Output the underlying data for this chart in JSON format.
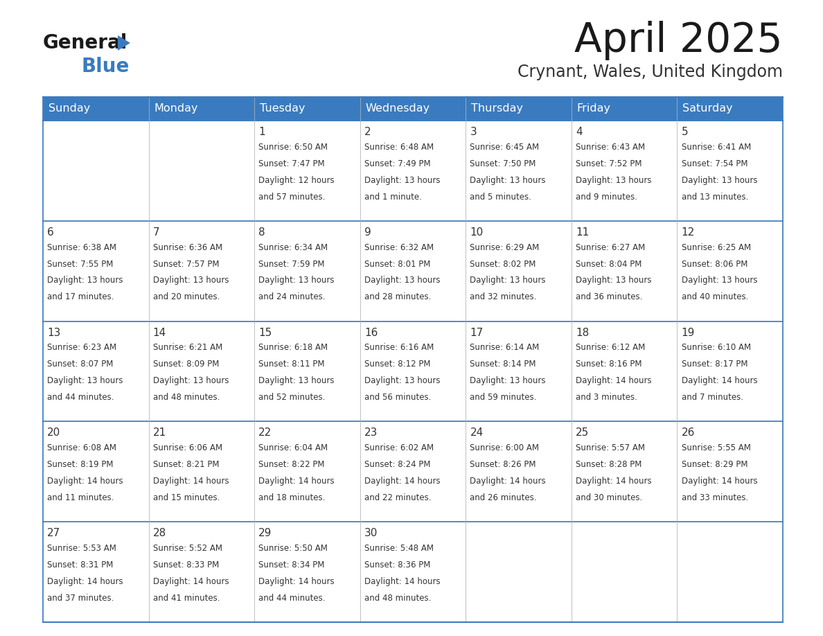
{
  "title": "April 2025",
  "subtitle": "Crynant, Wales, United Kingdom",
  "header_color": "#3a7bbf",
  "header_text_color": "#ffffff",
  "cell_bg_color": "#ffffff",
  "text_color": "#333333",
  "border_color": "#3a7bbf",
  "cell_border_color": "#bbbbbb",
  "days_of_week": [
    "Sunday",
    "Monday",
    "Tuesday",
    "Wednesday",
    "Thursday",
    "Friday",
    "Saturday"
  ],
  "weeks": [
    [
      {
        "day": "",
        "sunrise": "",
        "sunset": "",
        "daylight": ""
      },
      {
        "day": "",
        "sunrise": "",
        "sunset": "",
        "daylight": ""
      },
      {
        "day": "1",
        "sunrise": "Sunrise: 6:50 AM",
        "sunset": "Sunset: 7:47 PM",
        "daylight": "Daylight: 12 hours\nand 57 minutes."
      },
      {
        "day": "2",
        "sunrise": "Sunrise: 6:48 AM",
        "sunset": "Sunset: 7:49 PM",
        "daylight": "Daylight: 13 hours\nand 1 minute."
      },
      {
        "day": "3",
        "sunrise": "Sunrise: 6:45 AM",
        "sunset": "Sunset: 7:50 PM",
        "daylight": "Daylight: 13 hours\nand 5 minutes."
      },
      {
        "day": "4",
        "sunrise": "Sunrise: 6:43 AM",
        "sunset": "Sunset: 7:52 PM",
        "daylight": "Daylight: 13 hours\nand 9 minutes."
      },
      {
        "day": "5",
        "sunrise": "Sunrise: 6:41 AM",
        "sunset": "Sunset: 7:54 PM",
        "daylight": "Daylight: 13 hours\nand 13 minutes."
      }
    ],
    [
      {
        "day": "6",
        "sunrise": "Sunrise: 6:38 AM",
        "sunset": "Sunset: 7:55 PM",
        "daylight": "Daylight: 13 hours\nand 17 minutes."
      },
      {
        "day": "7",
        "sunrise": "Sunrise: 6:36 AM",
        "sunset": "Sunset: 7:57 PM",
        "daylight": "Daylight: 13 hours\nand 20 minutes."
      },
      {
        "day": "8",
        "sunrise": "Sunrise: 6:34 AM",
        "sunset": "Sunset: 7:59 PM",
        "daylight": "Daylight: 13 hours\nand 24 minutes."
      },
      {
        "day": "9",
        "sunrise": "Sunrise: 6:32 AM",
        "sunset": "Sunset: 8:01 PM",
        "daylight": "Daylight: 13 hours\nand 28 minutes."
      },
      {
        "day": "10",
        "sunrise": "Sunrise: 6:29 AM",
        "sunset": "Sunset: 8:02 PM",
        "daylight": "Daylight: 13 hours\nand 32 minutes."
      },
      {
        "day": "11",
        "sunrise": "Sunrise: 6:27 AM",
        "sunset": "Sunset: 8:04 PM",
        "daylight": "Daylight: 13 hours\nand 36 minutes."
      },
      {
        "day": "12",
        "sunrise": "Sunrise: 6:25 AM",
        "sunset": "Sunset: 8:06 PM",
        "daylight": "Daylight: 13 hours\nand 40 minutes."
      }
    ],
    [
      {
        "day": "13",
        "sunrise": "Sunrise: 6:23 AM",
        "sunset": "Sunset: 8:07 PM",
        "daylight": "Daylight: 13 hours\nand 44 minutes."
      },
      {
        "day": "14",
        "sunrise": "Sunrise: 6:21 AM",
        "sunset": "Sunset: 8:09 PM",
        "daylight": "Daylight: 13 hours\nand 48 minutes."
      },
      {
        "day": "15",
        "sunrise": "Sunrise: 6:18 AM",
        "sunset": "Sunset: 8:11 PM",
        "daylight": "Daylight: 13 hours\nand 52 minutes."
      },
      {
        "day": "16",
        "sunrise": "Sunrise: 6:16 AM",
        "sunset": "Sunset: 8:12 PM",
        "daylight": "Daylight: 13 hours\nand 56 minutes."
      },
      {
        "day": "17",
        "sunrise": "Sunrise: 6:14 AM",
        "sunset": "Sunset: 8:14 PM",
        "daylight": "Daylight: 13 hours\nand 59 minutes."
      },
      {
        "day": "18",
        "sunrise": "Sunrise: 6:12 AM",
        "sunset": "Sunset: 8:16 PM",
        "daylight": "Daylight: 14 hours\nand 3 minutes."
      },
      {
        "day": "19",
        "sunrise": "Sunrise: 6:10 AM",
        "sunset": "Sunset: 8:17 PM",
        "daylight": "Daylight: 14 hours\nand 7 minutes."
      }
    ],
    [
      {
        "day": "20",
        "sunrise": "Sunrise: 6:08 AM",
        "sunset": "Sunset: 8:19 PM",
        "daylight": "Daylight: 14 hours\nand 11 minutes."
      },
      {
        "day": "21",
        "sunrise": "Sunrise: 6:06 AM",
        "sunset": "Sunset: 8:21 PM",
        "daylight": "Daylight: 14 hours\nand 15 minutes."
      },
      {
        "day": "22",
        "sunrise": "Sunrise: 6:04 AM",
        "sunset": "Sunset: 8:22 PM",
        "daylight": "Daylight: 14 hours\nand 18 minutes."
      },
      {
        "day": "23",
        "sunrise": "Sunrise: 6:02 AM",
        "sunset": "Sunset: 8:24 PM",
        "daylight": "Daylight: 14 hours\nand 22 minutes."
      },
      {
        "day": "24",
        "sunrise": "Sunrise: 6:00 AM",
        "sunset": "Sunset: 8:26 PM",
        "daylight": "Daylight: 14 hours\nand 26 minutes."
      },
      {
        "day": "25",
        "sunrise": "Sunrise: 5:57 AM",
        "sunset": "Sunset: 8:28 PM",
        "daylight": "Daylight: 14 hours\nand 30 minutes."
      },
      {
        "day": "26",
        "sunrise": "Sunrise: 5:55 AM",
        "sunset": "Sunset: 8:29 PM",
        "daylight": "Daylight: 14 hours\nand 33 minutes."
      }
    ],
    [
      {
        "day": "27",
        "sunrise": "Sunrise: 5:53 AM",
        "sunset": "Sunset: 8:31 PM",
        "daylight": "Daylight: 14 hours\nand 37 minutes."
      },
      {
        "day": "28",
        "sunrise": "Sunrise: 5:52 AM",
        "sunset": "Sunset: 8:33 PM",
        "daylight": "Daylight: 14 hours\nand 41 minutes."
      },
      {
        "day": "29",
        "sunrise": "Sunrise: 5:50 AM",
        "sunset": "Sunset: 8:34 PM",
        "daylight": "Daylight: 14 hours\nand 44 minutes."
      },
      {
        "day": "30",
        "sunrise": "Sunrise: 5:48 AM",
        "sunset": "Sunset: 8:36 PM",
        "daylight": "Daylight: 14 hours\nand 48 minutes."
      },
      {
        "day": "",
        "sunrise": "",
        "sunset": "",
        "daylight": ""
      },
      {
        "day": "",
        "sunrise": "",
        "sunset": "",
        "daylight": ""
      },
      {
        "day": "",
        "sunrise": "",
        "sunset": "",
        "daylight": ""
      }
    ]
  ],
  "logo_general_color": "#1a1a1a",
  "logo_blue_color": "#3a7bbf",
  "title_fontsize": 42,
  "subtitle_fontsize": 17,
  "header_fontsize": 11.5,
  "day_num_fontsize": 11,
  "cell_text_fontsize": 8.5
}
